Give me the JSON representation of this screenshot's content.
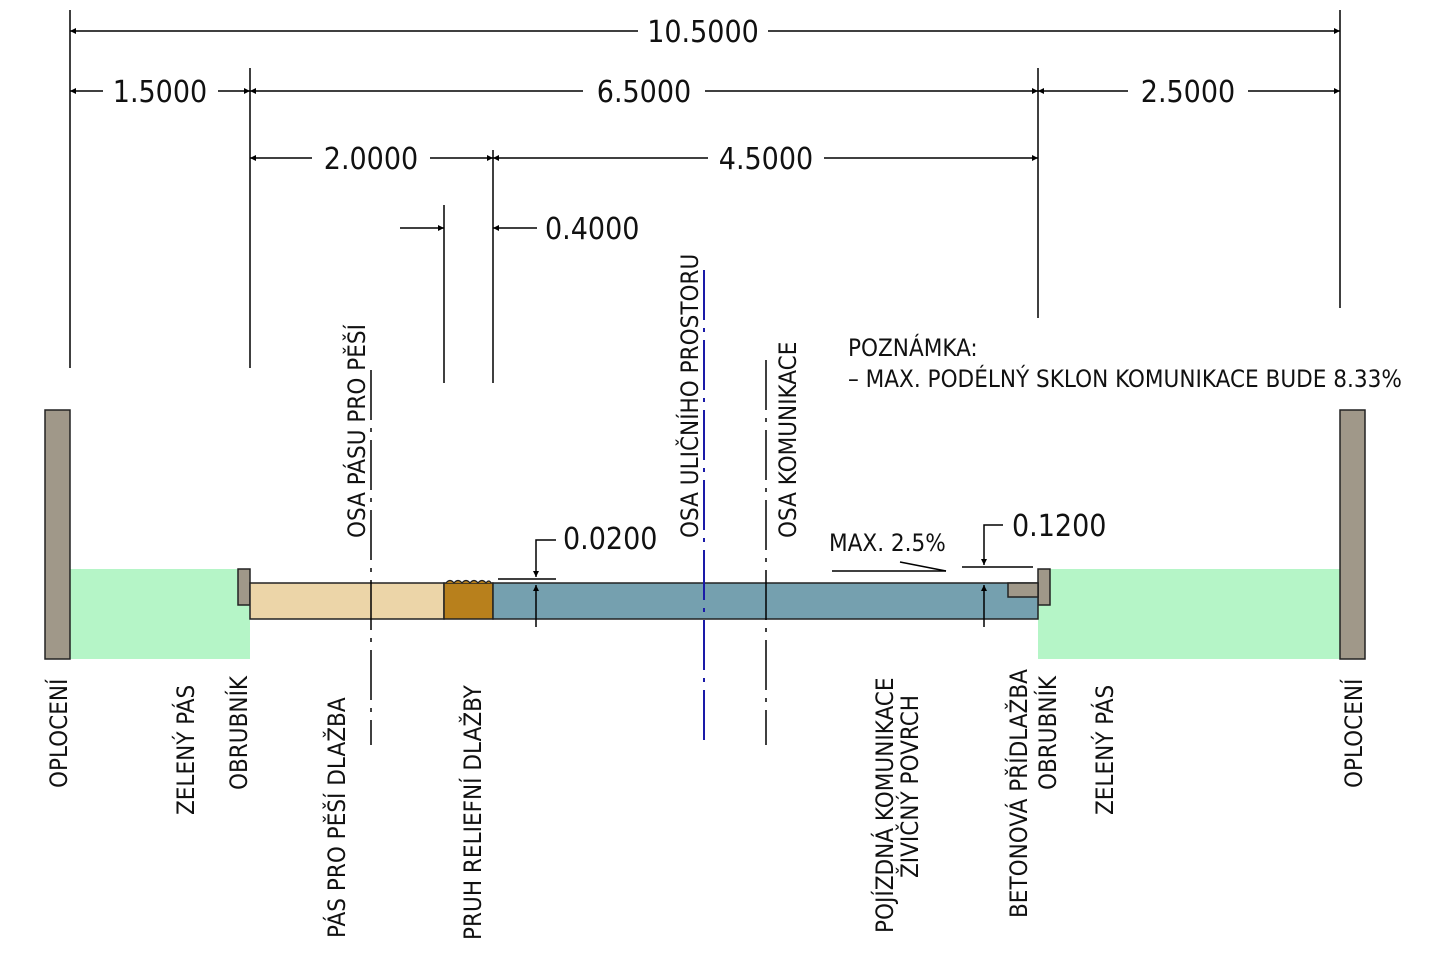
{
  "dimensions": {
    "total": "10.5000",
    "left_green": "1.5000",
    "middle": "6.5000",
    "right_green": "2.5000",
    "sidewalk": "2.0000",
    "road": "4.5000",
    "tactile": "0.4000",
    "kerb_height": "0.0200",
    "curb_step": "0.1200"
  },
  "slope_label": "MAX. 2.5%",
  "note": {
    "title": "POZNÁMKA:",
    "line": "– MAX. PODÉLNÝ SKLON KOMUNIKACE BUDE 8.33%"
  },
  "axes": {
    "sidewalk_axis": "OSA PÁSU PRO PĚŠÍ",
    "street_axis": "OSA ULIČNÍHO PROSTORU",
    "road_axis": "OSA KOMUNIKACE"
  },
  "labels": {
    "fence_left": "OPLOCENÍ",
    "green_left": "ZELENÝ PÁS",
    "curb_left": "OBRUBNÍK",
    "sidewalk": "PÁS PRO PĚŠÍ DLAŽBA",
    "tactile": "PRUH RELIEFNÍ DLAŽBY",
    "road_line1": "POJÍZDNÁ KOMUNIKACE",
    "road_line2": "ŽIVIČNÝ POVRCH",
    "concrete_gutter": "BETONOVÁ PŘÍDLAŽBA",
    "curb_right": "OBRUBNÍK",
    "green_right": "ZELENÝ PÁS",
    "fence_right": "OPLOCENÍ"
  },
  "colors": {
    "fence": "#a09889",
    "green": "#b5f5c7",
    "sidewalk": "#ecd5a8",
    "tactile": "#b8801c",
    "road": "#75a0af",
    "curb": "#a09889",
    "street_axis": "#1a1aa8"
  }
}
